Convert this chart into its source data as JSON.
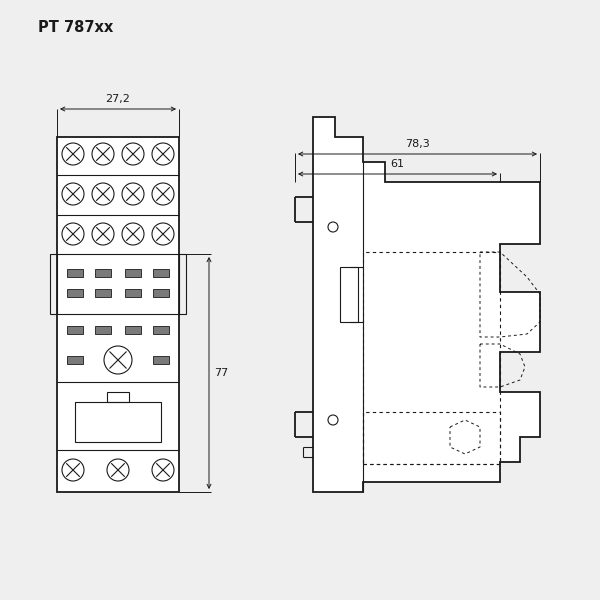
{
  "title": "PT 787xx",
  "bg_color": "#efefef",
  "line_color": "#1a1a1a",
  "dim_color": "#1a1a1a",
  "dim_27_2": "27,2",
  "dim_78_3": "78,3",
  "dim_61": "61",
  "dim_77": "77",
  "font_size_title": 10.5,
  "font_size_dim": 8.0
}
